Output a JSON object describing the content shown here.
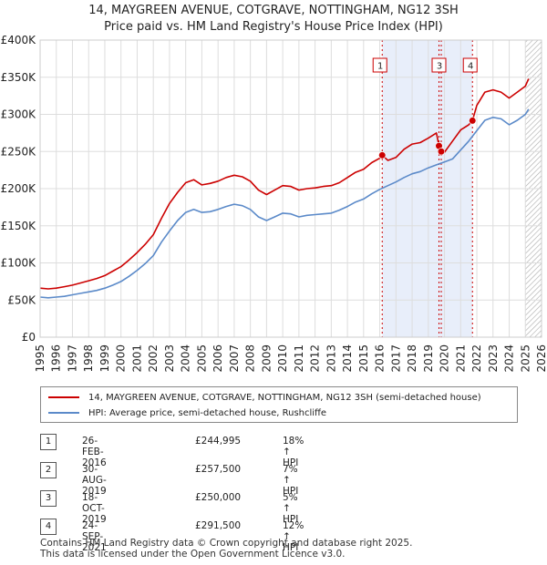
{
  "title_line1": "14, MAYGREEN AVENUE, COTGRAVE, NOTTINGHAM, NG12 3SH",
  "title_line2": "Price paid vs. HM Land Registry's House Price Index (HPI)",
  "colors": {
    "property": "#cc0000",
    "hpi": "#5b8ac9",
    "shade": "#e8eefa",
    "marker": "#cc0000"
  },
  "chart_data": {
    "type": "line",
    "title": "Price paid vs. HM Land Registry's House Price Index (HPI)",
    "xlabel": "",
    "ylabel": "",
    "xlim": [
      1995,
      2026
    ],
    "ylim": [
      0,
      400000
    ],
    "y_ticks": [
      {
        "value": 0,
        "label": "£0"
      },
      {
        "value": 50000,
        "label": "£50K"
      },
      {
        "value": 100000,
        "label": "£100K"
      },
      {
        "value": 150000,
        "label": "£150K"
      },
      {
        "value": 200000,
        "label": "£200K"
      },
      {
        "value": 250000,
        "label": "£250K"
      },
      {
        "value": 300000,
        "label": "£300K"
      },
      {
        "value": 350000,
        "label": "£350K"
      },
      {
        "value": 400000,
        "label": "£400K"
      }
    ],
    "x_ticks": [
      "1995",
      "1996",
      "1997",
      "1998",
      "1999",
      "2000",
      "2001",
      "2002",
      "2003",
      "2004",
      "2005",
      "2006",
      "2007",
      "2008",
      "2009",
      "2010",
      "2011",
      "2012",
      "2013",
      "2014",
      "2015",
      "2016",
      "2017",
      "2018",
      "2019",
      "2020",
      "2021",
      "2022",
      "2023",
      "2024",
      "2025",
      "2026"
    ],
    "grid": true,
    "shaded_ranges": [
      [
        2016.15,
        2021.73
      ]
    ],
    "hatched_from": 2025.0,
    "series": [
      {
        "name": "14, MAYGREEN AVENUE, COTGRAVE, NOTTINGHAM, NG12 3SH (semi-detached house)",
        "x": [
          1995.0,
          1995.5,
          1996.0,
          1996.5,
          1997.0,
          1997.5,
          1998.0,
          1998.5,
          1999.0,
          1999.5,
          2000.0,
          2000.5,
          2001.0,
          2001.5,
          2002.0,
          2002.5,
          2003.0,
          2003.5,
          2004.0,
          2004.5,
          2005.0,
          2005.5,
          2006.0,
          2006.5,
          2007.0,
          2007.5,
          2008.0,
          2008.5,
          2009.0,
          2009.5,
          2010.0,
          2010.5,
          2011.0,
          2011.5,
          2012.0,
          2012.5,
          2013.0,
          2013.5,
          2014.0,
          2014.5,
          2015.0,
          2015.5,
          2016.0,
          2016.15,
          2016.5,
          2017.0,
          2017.5,
          2018.0,
          2018.5,
          2019.0,
          2019.5,
          2019.66,
          2019.8,
          2020.0,
          2020.5,
          2021.0,
          2021.5,
          2021.73,
          2022.0,
          2022.5,
          2023.0,
          2023.5,
          2024.0,
          2024.5,
          2025.0,
          2025.2
        ],
        "values": [
          66000,
          65000,
          66000,
          68000,
          70000,
          73000,
          76000,
          79000,
          83000,
          89000,
          95000,
          104000,
          114000,
          125000,
          138000,
          160000,
          180000,
          195000,
          208000,
          212000,
          205000,
          207000,
          210000,
          215000,
          218000,
          216000,
          210000,
          198000,
          192000,
          198000,
          204000,
          203000,
          198000,
          200000,
          201000,
          203000,
          204000,
          208000,
          215000,
          222000,
          226000,
          235000,
          241000,
          244995,
          238000,
          242000,
          253000,
          260000,
          262000,
          268000,
          275000,
          257500,
          250000,
          249000,
          264000,
          279000,
          286000,
          291500,
          312000,
          330000,
          333000,
          330000,
          322000,
          330000,
          338000,
          348000
        ]
      },
      {
        "name": "HPI: Average price, semi-detached house, Rushcliffe",
        "x": [
          1995.0,
          1995.5,
          1996.0,
          1996.5,
          1997.0,
          1997.5,
          1998.0,
          1998.5,
          1999.0,
          1999.5,
          2000.0,
          2000.5,
          2001.0,
          2001.5,
          2002.0,
          2002.5,
          2003.0,
          2003.5,
          2004.0,
          2004.5,
          2005.0,
          2005.5,
          2006.0,
          2006.5,
          2007.0,
          2007.5,
          2008.0,
          2008.5,
          2009.0,
          2009.5,
          2010.0,
          2010.5,
          2011.0,
          2011.5,
          2012.0,
          2012.5,
          2013.0,
          2013.5,
          2014.0,
          2014.5,
          2015.0,
          2015.5,
          2016.0,
          2016.5,
          2017.0,
          2017.5,
          2018.0,
          2018.5,
          2019.0,
          2019.5,
          2020.0,
          2020.5,
          2021.0,
          2021.5,
          2022.0,
          2022.5,
          2023.0,
          2023.5,
          2024.0,
          2024.5,
          2025.0,
          2025.2
        ],
        "values": [
          54000,
          53000,
          54000,
          55000,
          57000,
          59000,
          61000,
          63000,
          66000,
          70000,
          75000,
          82000,
          90000,
          99000,
          110000,
          128000,
          143000,
          157000,
          168000,
          172000,
          168000,
          169000,
          172000,
          176000,
          179000,
          177000,
          172000,
          162000,
          157000,
          162000,
          167000,
          166000,
          162000,
          164000,
          165000,
          166000,
          167000,
          171000,
          176000,
          182000,
          186000,
          193000,
          199000,
          204000,
          209000,
          215000,
          220000,
          223000,
          228000,
          232000,
          236000,
          240000,
          252000,
          264000,
          278000,
          292000,
          296000,
          294000,
          286000,
          292000,
          300000,
          307000
        ]
      }
    ],
    "sale_markers": [
      {
        "id": "1",
        "x": 2016.15,
        "value": 244995
      },
      {
        "id": "2",
        "x": 2019.66,
        "value": 257500
      },
      {
        "id": "3",
        "x": 2019.8,
        "value": 250000
      },
      {
        "id": "4",
        "x": 2021.73,
        "value": 291500
      }
    ],
    "chart_labels": [
      {
        "id": "1",
        "x": 2016.15
      },
      {
        "id": "3",
        "x": 2019.8
      },
      {
        "id": "4",
        "x": 2021.73
      }
    ]
  },
  "legend": {
    "property_label": "14, MAYGREEN AVENUE, COTGRAVE, NOTTINGHAM, NG12 3SH (semi-detached house)",
    "hpi_label": "HPI: Average price, semi-detached house, Rushcliffe"
  },
  "sales": [
    {
      "num": "1",
      "date": "26-FEB-2016",
      "price": "£244,995",
      "hpi": "18% ↑ HPI"
    },
    {
      "num": "2",
      "date": "30-AUG-2019",
      "price": "£257,500",
      "hpi": "7% ↑ HPI"
    },
    {
      "num": "3",
      "date": "18-OCT-2019",
      "price": "£250,000",
      "hpi": "5% ↑ HPI"
    },
    {
      "num": "4",
      "date": "24-SEP-2021",
      "price": "£291,500",
      "hpi": "12% ↑ HPI"
    }
  ],
  "footer": {
    "line1": "Contains HM Land Registry data © Crown copyright and database right 2025.",
    "line2": "This data is licensed under the Open Government Licence v3.0."
  }
}
